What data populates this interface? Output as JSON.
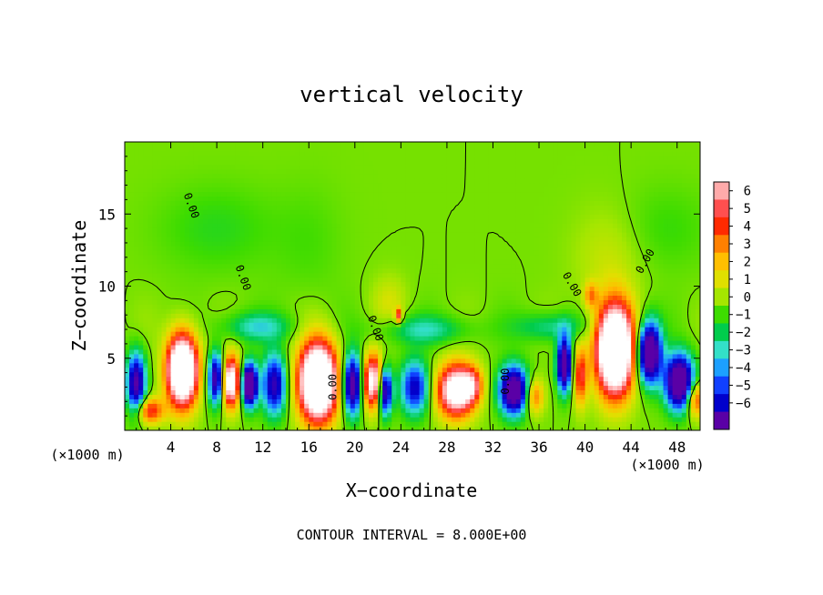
{
  "chart_data": {
    "type": "heatmap",
    "title": "vertical velocity",
    "xlabel": "X−coordinate",
    "ylabel": "Z−coordinate",
    "x_unit_label": "(×1000 m)",
    "y_unit_label": "(×1000 m)",
    "footer": "CONTOUR INTERVAL = 8.000E+00",
    "contour_label": "0.00",
    "xlim": [
      0,
      50
    ],
    "ylim": [
      0,
      20
    ],
    "x_ticks": [
      4,
      8,
      12,
      16,
      20,
      24,
      28,
      32,
      36,
      40,
      44,
      48
    ],
    "y_ticks": [
      5,
      10,
      15
    ],
    "colorbar": {
      "labels": [
        "6",
        "5",
        "4",
        "3",
        "2",
        "1",
        "0",
        "−1",
        "−2",
        "−3",
        "−4",
        "−5",
        "−6"
      ],
      "range": [
        -6,
        6
      ],
      "colors": [
        "#ffaaaa",
        "#ff4f4f",
        "#ff2a00",
        "#ff8000",
        "#ffbf00",
        "#e0e000",
        "#a5e600",
        "#3ddc00",
        "#00cc4c",
        "#33e0c8",
        "#1ca0ff",
        "#1040ff",
        "#0000cc",
        "#5a00a6"
      ]
    },
    "colorscale_stops": [
      {
        "value": -8,
        "color": "#5a00a6"
      },
      {
        "value": -5.5,
        "color": "#0000cc"
      },
      {
        "value": -4.5,
        "color": "#1040ff"
      },
      {
        "value": -3.5,
        "color": "#1ca0ff"
      },
      {
        "value": -2.5,
        "color": "#33e0c8"
      },
      {
        "value": -1.5,
        "color": "#00cc4c"
      },
      {
        "value": -0.6,
        "color": "#3ddc00"
      },
      {
        "value": 0.5,
        "color": "#a5e600"
      },
      {
        "value": 1.5,
        "color": "#e0e000"
      },
      {
        "value": 2.5,
        "color": "#ffbf00"
      },
      {
        "value": 3.5,
        "color": "#ff8000"
      },
      {
        "value": 4.5,
        "color": "#ff2a00"
      },
      {
        "value": 5.5,
        "color": "#ff4f4f"
      },
      {
        "value": 6.5,
        "color": "#ffaaaa"
      },
      {
        "value": 8,
        "color": "#ffffff"
      }
    ],
    "features": [
      {
        "x": 5.0,
        "z": 4.2,
        "sx": 1.3,
        "sz": 2.4,
        "amp": 14
      },
      {
        "x": 9.2,
        "z": 3.4,
        "sx": 0.9,
        "sz": 1.7,
        "amp": 10
      },
      {
        "x": 10.8,
        "z": 3.2,
        "sx": 0.7,
        "sz": 1.4,
        "amp": -12
      },
      {
        "x": 8.0,
        "z": 3.6,
        "sx": 0.7,
        "sz": 1.7,
        "amp": -9
      },
      {
        "x": 1.0,
        "z": 3.3,
        "sx": 0.8,
        "sz": 2.0,
        "amp": -8
      },
      {
        "x": 2.2,
        "z": 1.4,
        "sx": 1.2,
        "sz": 0.9,
        "amp": 5
      },
      {
        "x": 13.0,
        "z": 3.2,
        "sx": 1.0,
        "sz": 2.0,
        "amp": -7
      },
      {
        "x": 16.8,
        "z": 3.4,
        "sx": 1.6,
        "sz": 2.6,
        "amp": 15
      },
      {
        "x": 19.8,
        "z": 3.2,
        "sx": 0.8,
        "sz": 2.0,
        "amp": -9
      },
      {
        "x": 21.6,
        "z": 3.4,
        "sx": 0.9,
        "sz": 1.8,
        "amp": 9
      },
      {
        "x": 22.6,
        "z": 2.8,
        "sx": 0.6,
        "sz": 1.6,
        "amp": -9
      },
      {
        "x": 25.2,
        "z": 3.0,
        "sx": 1.2,
        "sz": 1.8,
        "amp": -6
      },
      {
        "x": 28.8,
        "z": 2.8,
        "sx": 1.6,
        "sz": 1.8,
        "amp": 10
      },
      {
        "x": 30.2,
        "z": 3.2,
        "sx": 0.9,
        "sz": 1.2,
        "amp": 4
      },
      {
        "x": 33.8,
        "z": 2.8,
        "sx": 1.2,
        "sz": 1.6,
        "amp": -10
      },
      {
        "x": 35.6,
        "z": 2.4,
        "sx": 0.8,
        "sz": 1.2,
        "amp": 4
      },
      {
        "x": 38.2,
        "z": 4.6,
        "sx": 0.6,
        "sz": 1.8,
        "amp": -10
      },
      {
        "x": 39.6,
        "z": 3.8,
        "sx": 0.6,
        "sz": 2.0,
        "amp": 5
      },
      {
        "x": 42.6,
        "z": 5.6,
        "sx": 1.6,
        "sz": 3.0,
        "amp": 15
      },
      {
        "x": 45.6,
        "z": 5.4,
        "sx": 1.0,
        "sz": 2.0,
        "amp": -11
      },
      {
        "x": 48.2,
        "z": 3.4,
        "sx": 1.2,
        "sz": 1.8,
        "amp": -11
      },
      {
        "x": 49.6,
        "z": 2.2,
        "sx": 0.8,
        "sz": 1.2,
        "amp": 5
      },
      {
        "x": 11.5,
        "z": 7.2,
        "sx": 3.0,
        "sz": 1.0,
        "amp": -2.5
      },
      {
        "x": 26.0,
        "z": 7.0,
        "sx": 4.0,
        "sz": 1.0,
        "amp": -2.2
      },
      {
        "x": 37.0,
        "z": 7.2,
        "sx": 3.0,
        "sz": 1.0,
        "amp": -2.2
      },
      {
        "x": 23.8,
        "z": 8.0,
        "sx": 0.3,
        "sz": 0.5,
        "amp": 5
      },
      {
        "x": 23.0,
        "z": 9.0,
        "sx": 1.5,
        "sz": 1.8,
        "amp": 1.2
      },
      {
        "x": 40.5,
        "z": 9.4,
        "sx": 0.6,
        "sz": 0.9,
        "amp": 3
      },
      {
        "x": 42.0,
        "z": 12.0,
        "sx": 3.0,
        "sz": 3.5,
        "amp": 1.0
      },
      {
        "x": 8.0,
        "z": 14.0,
        "sx": 5.0,
        "sz": 3.0,
        "amp": -0.9
      },
      {
        "x": 16.0,
        "z": 13.0,
        "sx": 3.0,
        "sz": 4.0,
        "amp": -0.5
      },
      {
        "x": 47.0,
        "z": 14.0,
        "sx": 4.0,
        "sz": 3.0,
        "amp": -0.7
      }
    ],
    "zero_contour_label_positions": [
      {
        "x": 5.5,
        "z": 15.5,
        "rot": 70
      },
      {
        "x": 10.0,
        "z": 10.5,
        "rot": 70
      },
      {
        "x": 21.5,
        "z": 7.0,
        "rot": 70
      },
      {
        "x": 18.4,
        "z": 3.0,
        "rot": -90
      },
      {
        "x": 33.4,
        "z": 3.4,
        "rot": -90
      },
      {
        "x": 38.6,
        "z": 10.0,
        "rot": 60
      },
      {
        "x": 45.5,
        "z": 11.6,
        "rot": -60
      }
    ]
  }
}
